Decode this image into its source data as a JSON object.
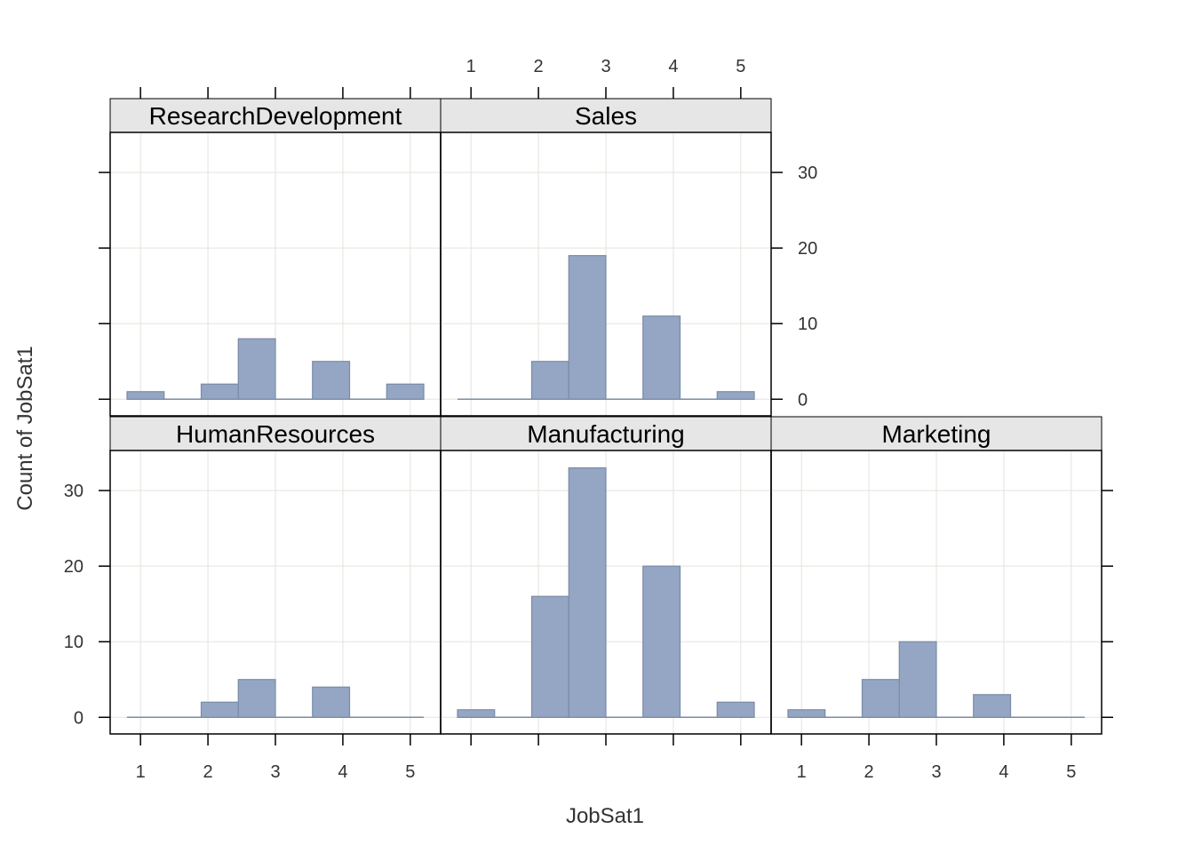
{
  "chart_data": {
    "type": "bar",
    "xlabel": "JobSat1",
    "ylabel": "Count of JobSat1",
    "x_ticks": [
      "1",
      "2",
      "3",
      "4",
      "5"
    ],
    "y_ticks": [
      "0",
      "10",
      "20",
      "30"
    ],
    "xlim": [
      0.55,
      5.45
    ],
    "ylim": [
      -2.2,
      35.3
    ],
    "bin_edges": [
      0.8,
      1.35,
      1.9,
      2.45,
      3.0,
      3.55,
      4.1,
      4.65,
      5.2
    ],
    "grid": true,
    "bar_color": "#94a6c4",
    "bar_edge_color": "#7a8ba6",
    "strip_color": "#e6e6e6",
    "panels": [
      {
        "name": "ResearchDevelopment",
        "counts": [
          1,
          0,
          2,
          8,
          0,
          5,
          0,
          2
        ]
      },
      {
        "name": "Sales",
        "counts": [
          0,
          0,
          5,
          19,
          0,
          11,
          0,
          1
        ]
      },
      {
        "name": "HumanResources",
        "counts": [
          0,
          0,
          2,
          5,
          0,
          4,
          0,
          0
        ]
      },
      {
        "name": "Manufacturing",
        "counts": [
          1,
          0,
          16,
          33,
          0,
          20,
          0,
          2
        ]
      },
      {
        "name": "Marketing",
        "counts": [
          1,
          0,
          5,
          10,
          0,
          3,
          0,
          0
        ]
      }
    ]
  }
}
